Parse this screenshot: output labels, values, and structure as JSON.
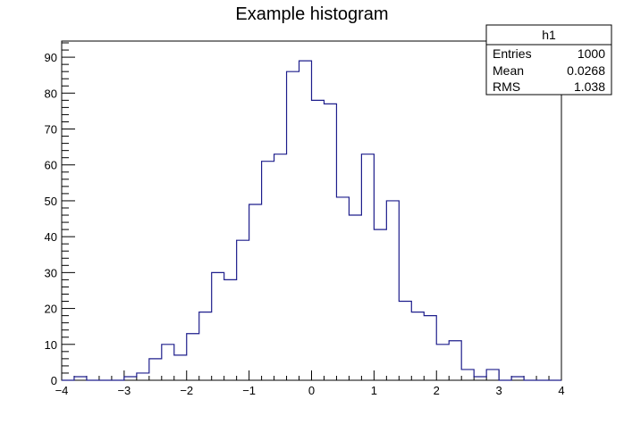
{
  "chart_data": {
    "type": "histogram",
    "title": "Example histogram",
    "xlabel": "",
    "ylabel": "",
    "xlim": [
      -4,
      4
    ],
    "ylim": [
      0,
      94.5
    ],
    "bin_width": 0.2,
    "bin_edges_start": -4,
    "values": [
      0,
      1,
      0,
      0,
      0,
      1,
      2,
      6,
      10,
      7,
      13,
      19,
      30,
      28,
      39,
      49,
      61,
      63,
      86,
      89,
      78,
      77,
      51,
      46,
      63,
      42,
      50,
      22,
      19,
      18,
      10,
      11,
      3,
      1,
      3,
      0,
      1,
      0,
      0,
      0
    ],
    "x_ticks": [
      -4,
      -3,
      -2,
      -1,
      0,
      1,
      2,
      3,
      4
    ],
    "x_tick_labels": [
      "−4",
      "−3",
      "−2",
      "−1",
      "0",
      "1",
      "2",
      "3",
      "4"
    ],
    "y_ticks": [
      0,
      10,
      20,
      30,
      40,
      50,
      60,
      70,
      80,
      90
    ],
    "y_tick_labels": [
      "0",
      "10",
      "20",
      "30",
      "40",
      "50",
      "60",
      "70",
      "80",
      "90"
    ],
    "line_color": "#1e1e8c",
    "stats_box": {
      "name": "h1",
      "rows": [
        {
          "label": "Entries",
          "value": "1000"
        },
        {
          "label": "Mean",
          "value": "0.0268"
        },
        {
          "label": "RMS",
          "value": "1.038"
        }
      ]
    }
  }
}
